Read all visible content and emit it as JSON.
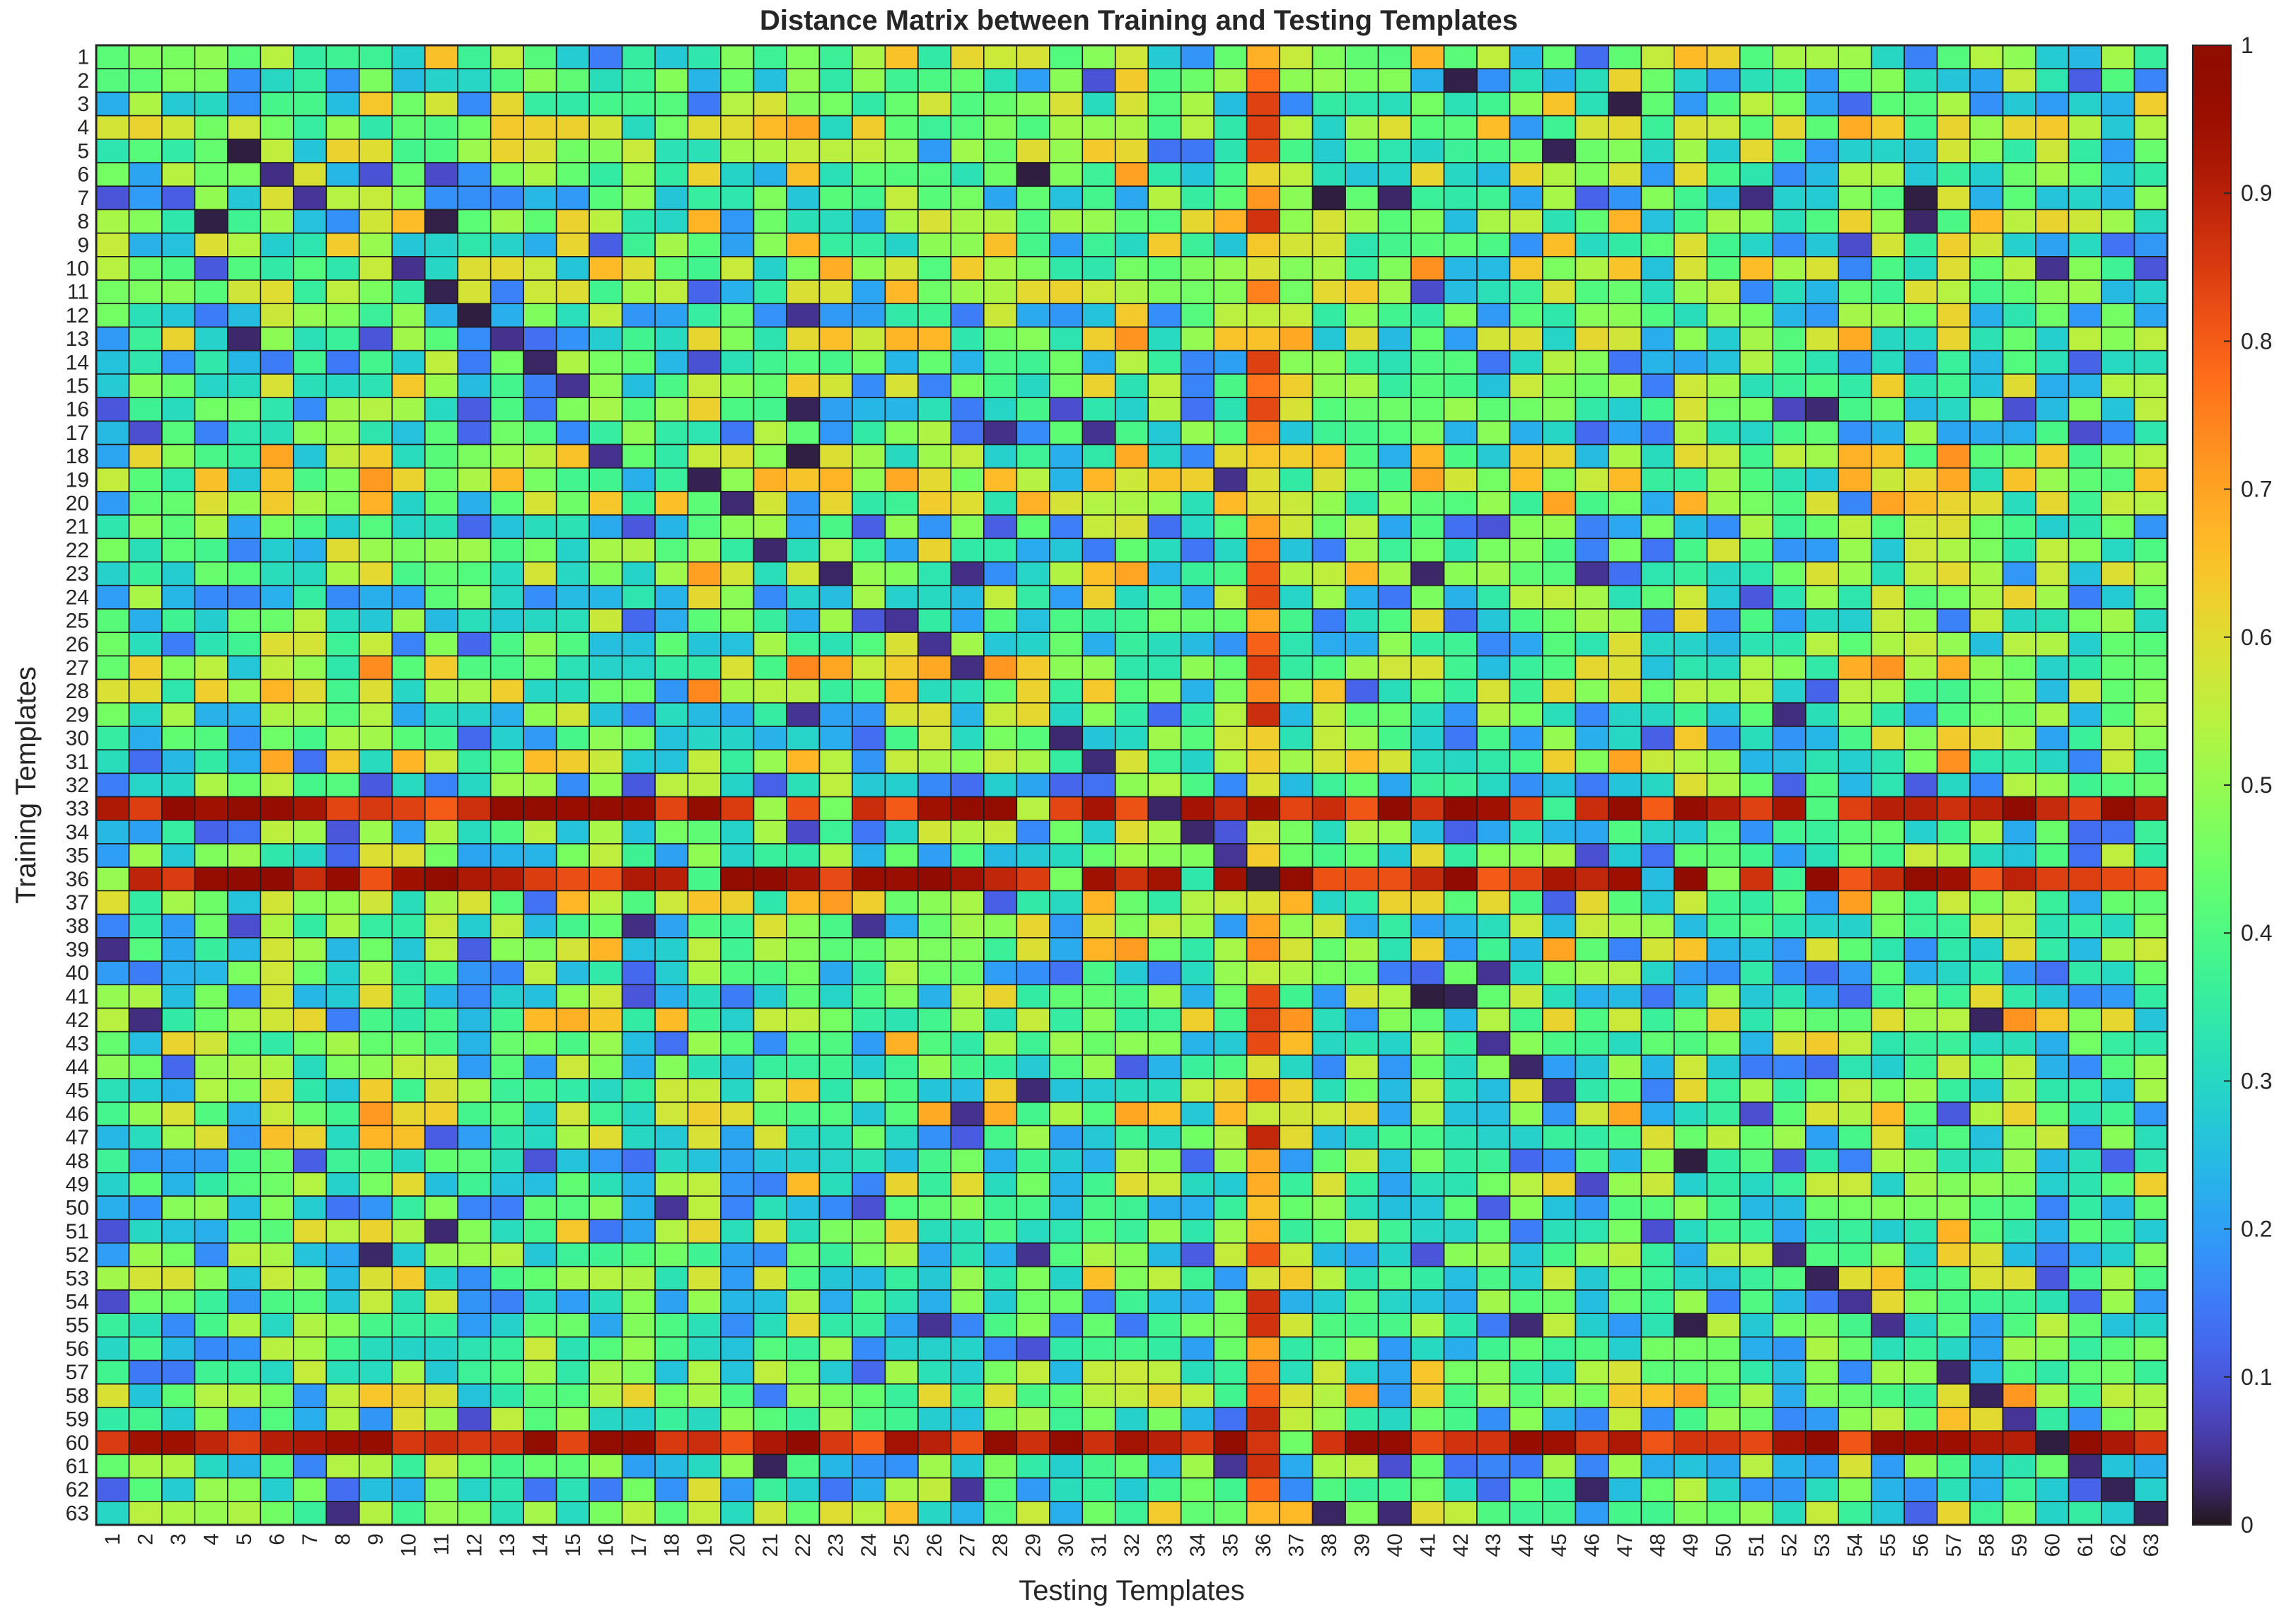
{
  "chart_data": {
    "type": "heatmap",
    "title": "Distance Matrix between Training and Testing Templates",
    "xlabel": "Testing Templates",
    "ylabel": "Training Templates",
    "x_categories": [
      "1",
      "2",
      "3",
      "4",
      "5",
      "6",
      "7",
      "8",
      "9",
      "10",
      "11",
      "12",
      "13",
      "14",
      "15",
      "16",
      "17",
      "18",
      "19",
      "20",
      "21",
      "22",
      "23",
      "24",
      "25",
      "26",
      "27",
      "28",
      "29",
      "30",
      "31",
      "32",
      "33",
      "34",
      "35",
      "36",
      "37",
      "38",
      "39",
      "40",
      "41",
      "42",
      "43",
      "44",
      "45",
      "46",
      "47",
      "48",
      "49",
      "50",
      "51",
      "52",
      "53",
      "54",
      "55",
      "56",
      "57",
      "58",
      "59",
      "60",
      "61",
      "62",
      "63"
    ],
    "y_categories": [
      "1",
      "2",
      "3",
      "4",
      "5",
      "6",
      "7",
      "8",
      "9",
      "10",
      "11",
      "12",
      "13",
      "14",
      "15",
      "16",
      "17",
      "18",
      "19",
      "20",
      "21",
      "22",
      "23",
      "24",
      "25",
      "26",
      "27",
      "28",
      "29",
      "30",
      "31",
      "32",
      "33",
      "34",
      "35",
      "36",
      "37",
      "38",
      "39",
      "40",
      "41",
      "42",
      "43",
      "44",
      "45",
      "46",
      "47",
      "48",
      "49",
      "50",
      "51",
      "52",
      "53",
      "54",
      "55",
      "56",
      "57",
      "58",
      "59",
      "60",
      "61",
      "62",
      "63"
    ],
    "colormap": "turbo",
    "clim": [
      0,
      1
    ],
    "colorbar_ticks": [
      "0",
      "0.1",
      "0.2",
      "0.3",
      "0.4",
      "0.5",
      "0.6",
      "0.7",
      "0.8",
      "0.9",
      "1"
    ],
    "values_note": "63x63 approximate distances; values generated procedurally",
    "dark_cells": [
      [
        2,
        42
      ],
      [
        3,
        47
      ],
      [
        5,
        5
      ],
      [
        5,
        45
      ],
      [
        6,
        6
      ],
      [
        6,
        29
      ],
      [
        7,
        7
      ],
      [
        7,
        38
      ],
      [
        7,
        40
      ],
      [
        7,
        51
      ],
      [
        7,
        56
      ],
      [
        8,
        4
      ],
      [
        8,
        11
      ],
      [
        8,
        56
      ],
      [
        10,
        10
      ],
      [
        10,
        60
      ],
      [
        11,
        11
      ],
      [
        12,
        12
      ],
      [
        12,
        22
      ],
      [
        13,
        5
      ],
      [
        13,
        13
      ],
      [
        14,
        14
      ],
      [
        15,
        15
      ],
      [
        16,
        22
      ],
      [
        16,
        53
      ],
      [
        17,
        28
      ],
      [
        17,
        31
      ],
      [
        18,
        16
      ],
      [
        18,
        22
      ],
      [
        19,
        19
      ],
      [
        19,
        35
      ],
      [
        20,
        20
      ],
      [
        22,
        21
      ],
      [
        23,
        23
      ],
      [
        23,
        27
      ],
      [
        23,
        41
      ],
      [
        23,
        46
      ],
      [
        25,
        25
      ],
      [
        26,
        26
      ],
      [
        27,
        27
      ],
      [
        29,
        22
      ],
      [
        29,
        52
      ],
      [
        30,
        30
      ],
      [
        31,
        31
      ],
      [
        33,
        33
      ],
      [
        34,
        34
      ],
      [
        35,
        35
      ],
      [
        36,
        36
      ],
      [
        38,
        17
      ],
      [
        38,
        24
      ],
      [
        39,
        1
      ],
      [
        40,
        43
      ],
      [
        41,
        42
      ],
      [
        41,
        41
      ],
      [
        42,
        2
      ],
      [
        42,
        58
      ],
      [
        43,
        43
      ],
      [
        44,
        44
      ],
      [
        45,
        29
      ],
      [
        45,
        45
      ],
      [
        46,
        27
      ],
      [
        48,
        49
      ],
      [
        50,
        18
      ],
      [
        51,
        11
      ],
      [
        52,
        9
      ],
      [
        52,
        29
      ],
      [
        52,
        52
      ],
      [
        53,
        53
      ],
      [
        54,
        54
      ],
      [
        55,
        26
      ],
      [
        55,
        44
      ],
      [
        55,
        49
      ],
      [
        55,
        55
      ],
      [
        57,
        57
      ],
      [
        58,
        58
      ],
      [
        59,
        59
      ],
      [
        60,
        60
      ],
      [
        61,
        21
      ],
      [
        61,
        35
      ],
      [
        61,
        61
      ],
      [
        62,
        27
      ],
      [
        62,
        46
      ],
      [
        62,
        62
      ],
      [
        63,
        8
      ],
      [
        63,
        38
      ],
      [
        63,
        40
      ],
      [
        63,
        63
      ]
    ],
    "high_rows": [
      33,
      36,
      60
    ],
    "high_columns": [
      36
    ]
  }
}
